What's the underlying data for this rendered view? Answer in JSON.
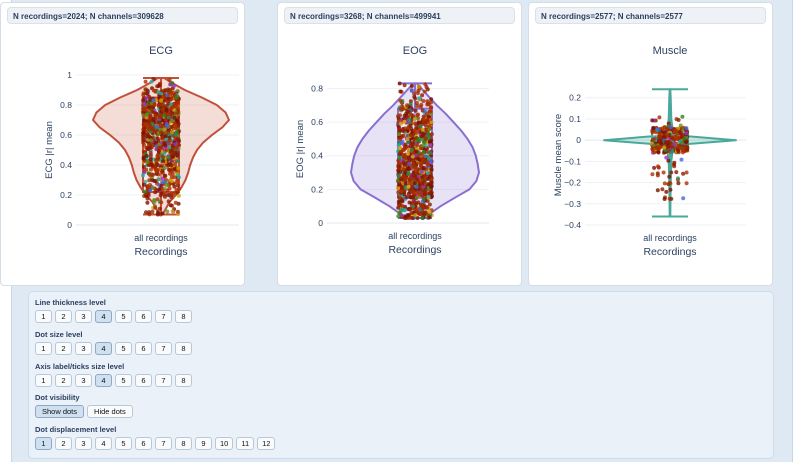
{
  "chart_data": [
    {
      "type": "violin",
      "header": "N recordings=2024; N channels=309628",
      "title": "ECG",
      "xlabel": "Recordings",
      "ylabel": "ECG |r| mean",
      "category": "all recordings",
      "ylim": [
        0,
        1
      ],
      "yticks": [
        "0",
        "0.2",
        "0.4",
        "0.6",
        "0.8",
        "1"
      ],
      "ytick_values": [
        0,
        0.2,
        0.4,
        0.6,
        0.8,
        1
      ],
      "stats": {
        "min": 0.07,
        "q1": 0.22,
        "median": 0.5,
        "q3": 0.85,
        "max": 0.98
      },
      "kde_y": [
        0.07,
        0.1,
        0.15,
        0.2,
        0.25,
        0.3,
        0.35,
        0.4,
        0.45,
        0.5,
        0.55,
        0.6,
        0.65,
        0.7,
        0.75,
        0.8,
        0.85,
        0.9,
        0.95,
        0.98
      ],
      "kde_w": [
        0.02,
        0.06,
        0.12,
        0.22,
        0.3,
        0.36,
        0.4,
        0.43,
        0.47,
        0.53,
        0.62,
        0.75,
        0.9,
        1.0,
        0.95,
        0.82,
        0.6,
        0.35,
        0.15,
        0.05
      ],
      "color": "#c0503a",
      "fill": "rgba(214,120,96,0.25)"
    },
    {
      "type": "violin",
      "header": "N recordings=3268; N channels=499941",
      "title": "EOG",
      "xlabel": "Recordings",
      "ylabel": "EOG |r| mean",
      "category": "all recordings",
      "ylim": [
        0,
        0.88
      ],
      "yticks": [
        "0",
        "0.2",
        "0.4",
        "0.6",
        "0.8"
      ],
      "ytick_values": [
        0,
        0.2,
        0.4,
        0.6,
        0.8
      ],
      "stats": {
        "min": 0.03,
        "q1": 0.15,
        "median": 0.4,
        "q3": 0.68,
        "max": 0.83
      },
      "kde_y": [
        0.03,
        0.06,
        0.1,
        0.15,
        0.2,
        0.25,
        0.3,
        0.35,
        0.4,
        0.45,
        0.5,
        0.55,
        0.6,
        0.65,
        0.7,
        0.75,
        0.8,
        0.83
      ],
      "kde_w": [
        0.1,
        0.25,
        0.4,
        0.62,
        0.85,
        0.96,
        1.0,
        0.98,
        0.95,
        0.9,
        0.82,
        0.72,
        0.6,
        0.48,
        0.34,
        0.22,
        0.1,
        0.03
      ],
      "color": "#8a6fd0",
      "fill": "rgba(160,140,220,0.25)"
    },
    {
      "type": "violin",
      "header": "N recordings=2577; N channels=2577",
      "title": "Muscle",
      "xlabel": "Recordings",
      "ylabel": "Muscle mean score",
      "category": "all recordings",
      "ylim": [
        -0.4,
        0.26
      ],
      "yticks": [
        "−0.4",
        "−0.3",
        "−0.2",
        "−0.1",
        "0",
        "0.1",
        "0.2"
      ],
      "ytick_values": [
        -0.4,
        -0.3,
        -0.2,
        -0.1,
        0,
        0.1,
        0.2
      ],
      "stats": {
        "min": -0.36,
        "q1": -0.03,
        "median": 0.0,
        "q3": 0.04,
        "max": 0.24
      },
      "kde_y": [
        -0.36,
        -0.2,
        -0.1,
        -0.05,
        -0.02,
        0,
        0.02,
        0.05,
        0.1,
        0.2,
        0.24
      ],
      "kde_w": [
        0.005,
        0.01,
        0.02,
        0.04,
        0.2,
        1.0,
        0.2,
        0.04,
        0.02,
        0.01,
        0.005
      ],
      "color": "#4aa89a",
      "fill": "rgba(110,190,175,0.35)"
    }
  ],
  "controls": {
    "line_thickness": {
      "label": "Line thickness level",
      "options": [
        "1",
        "2",
        "3",
        "4",
        "5",
        "6",
        "7",
        "8"
      ],
      "selected": "4"
    },
    "dot_size": {
      "label": "Dot size level",
      "options": [
        "1",
        "2",
        "3",
        "4",
        "5",
        "6",
        "7",
        "8"
      ],
      "selected": "4"
    },
    "axis_label_size": {
      "label": "Axis label/ticks size level",
      "options": [
        "1",
        "2",
        "3",
        "4",
        "5",
        "6",
        "7",
        "8"
      ],
      "selected": "4"
    },
    "dot_visibility": {
      "label": "Dot visibility",
      "options": [
        "Show dots",
        "Hide dots"
      ],
      "selected": "Show dots"
    },
    "dot_displacement": {
      "label": "Dot displacement level",
      "options": [
        "1",
        "2",
        "3",
        "4",
        "5",
        "6",
        "7",
        "8",
        "9",
        "10",
        "11",
        "12"
      ],
      "selected": "1"
    }
  }
}
